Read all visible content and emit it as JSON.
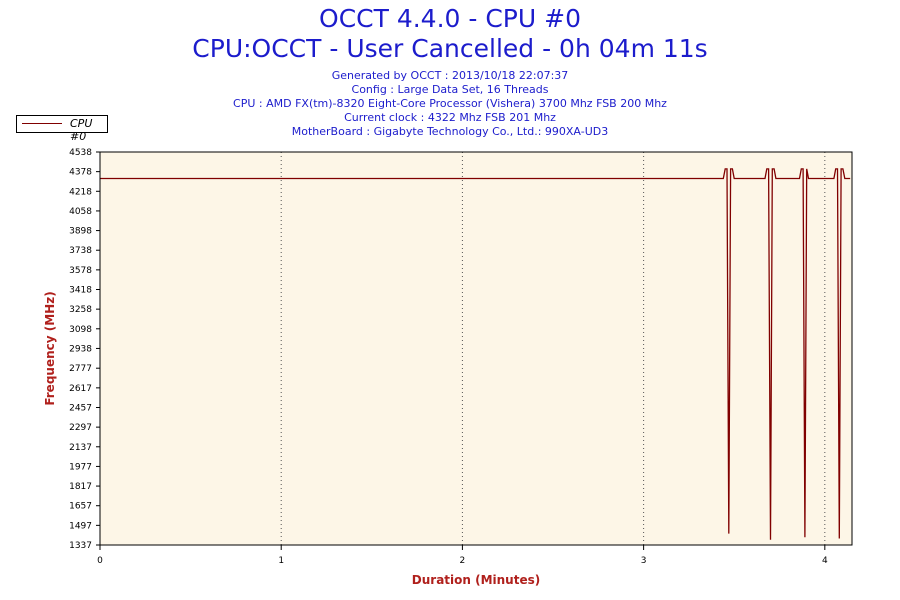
{
  "header": {
    "title": "OCCT 4.4.0 - CPU #0",
    "subtitle": "CPU:OCCT - User Cancelled - 0h 04m 11s",
    "info_lines": [
      "Generated by OCCT : 2013/10/18 22:07:37",
      "Config : Large Data Set, 16 Threads",
      "CPU : AMD FX(tm)-8320 Eight-Core Processor (Vishera) 3700 Mhz FSB 200 Mhz",
      "Current clock : 4322 Mhz FSB 201 Mhz",
      "MotherBoard : Gigabyte Technology Co., Ltd.: 990XA-UD3"
    ]
  },
  "legend": {
    "label": "CPU #0",
    "color": "#800000"
  },
  "colors": {
    "plot_background": "#fdf6e7",
    "series": "#800000",
    "axis_label": "#b0201c",
    "title": "#1c1ccc"
  },
  "chart_data": {
    "type": "line",
    "title": "OCCT 4.4.0 - CPU #0",
    "xlabel": "Duration (Minutes)",
    "ylabel": "Frequency (MHz)",
    "xlim": [
      0,
      4.15
    ],
    "ylim": [
      1337,
      4538
    ],
    "x_ticks": [
      "0",
      "1",
      "2",
      "3",
      "4"
    ],
    "y_ticks": [
      "4538",
      "4378",
      "4218",
      "4058",
      "3898",
      "3738",
      "3578",
      "3418",
      "3258",
      "3098",
      "2938",
      "2777",
      "2617",
      "2457",
      "2297",
      "2137",
      "1977",
      "1817",
      "1657",
      "1497",
      "1337"
    ],
    "grid": "vertical dotted",
    "legend_position": "top-left",
    "series": [
      {
        "name": "CPU #0",
        "x": [
          0,
          3.44,
          3.45,
          3.46,
          3.47,
          3.48,
          3.49,
          3.5,
          3.51,
          3.67,
          3.68,
          3.69,
          3.7,
          3.71,
          3.72,
          3.73,
          3.86,
          3.87,
          3.88,
          3.89,
          3.9,
          3.91,
          3.92,
          4.05,
          4.06,
          4.07,
          4.08,
          4.09,
          4.1,
          4.11,
          4.12,
          4.14
        ],
        "y": [
          4322,
          4322,
          4400,
          4400,
          1430,
          4400,
          4400,
          4322,
          4322,
          4322,
          4400,
          4400,
          1380,
          4400,
          4400,
          4322,
          4322,
          4400,
          4400,
          1400,
          4400,
          4322,
          4322,
          4322,
          4400,
          4400,
          1390,
          4400,
          4400,
          4322,
          4322,
          4322
        ]
      }
    ]
  }
}
